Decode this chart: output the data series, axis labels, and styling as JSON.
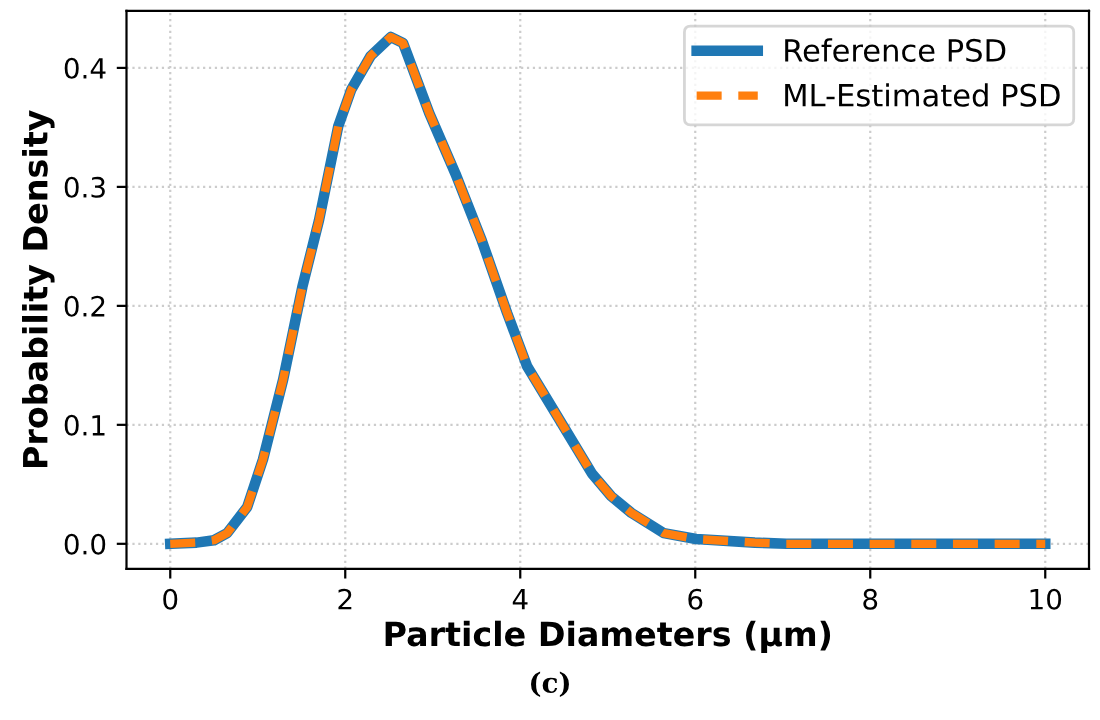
{
  "chart_data": {
    "type": "line",
    "xlabel": "Particle Diameters (µm)",
    "ylabel": "Probability Density",
    "annotations": [
      "(c)"
    ],
    "xlim": [
      -0.5,
      10.5
    ],
    "ylim": [
      -0.021,
      0.448
    ],
    "xticks": [
      0,
      2,
      4,
      6,
      8,
      10
    ],
    "yticks": [
      {
        "value": 0,
        "label": "0.0"
      },
      0.1,
      0.2,
      0.3,
      0.4
    ],
    "grid": true,
    "legend": "top right",
    "series": [
      {
        "name": "Reference PSD",
        "color": "#1f77b4",
        "line_style": "solid",
        "x": [
          0,
          0.3,
          0.5,
          0.65,
          0.88,
          1.06,
          1.29,
          1.51,
          1.7,
          1.92,
          2.07,
          2.29,
          2.52,
          2.66,
          2.96,
          3.26,
          3.56,
          3.85,
          4.08,
          4.45,
          4.82,
          5.04,
          5.27,
          5.64,
          6.01,
          6.68,
          7.04,
          8,
          9,
          10
        ],
        "values": [
          0,
          0.001,
          0.003,
          0.009,
          0.031,
          0.071,
          0.138,
          0.216,
          0.272,
          0.351,
          0.382,
          0.41,
          0.426,
          0.421,
          0.362,
          0.311,
          0.255,
          0.194,
          0.149,
          0.104,
          0.059,
          0.04,
          0.026,
          0.009,
          0.004,
          0.001,
          0,
          0,
          0,
          0
        ]
      },
      {
        "name": "ML-Estimated PSD",
        "color": "#ff7f0e",
        "line_style": "dashed",
        "x": [
          0,
          0.3,
          0.5,
          0.65,
          0.88,
          1.06,
          1.29,
          1.51,
          1.7,
          1.92,
          2.07,
          2.29,
          2.52,
          2.66,
          2.96,
          3.26,
          3.56,
          3.85,
          4.08,
          4.45,
          4.82,
          5.04,
          5.27,
          5.64,
          6.01,
          6.68,
          7.04,
          8,
          9,
          10
        ],
        "values": [
          0,
          0.001,
          0.003,
          0.009,
          0.031,
          0.071,
          0.138,
          0.216,
          0.272,
          0.351,
          0.382,
          0.41,
          0.426,
          0.421,
          0.362,
          0.311,
          0.255,
          0.194,
          0.149,
          0.104,
          0.059,
          0.04,
          0.026,
          0.009,
          0.004,
          0.001,
          0,
          0,
          0,
          0
        ]
      }
    ]
  }
}
